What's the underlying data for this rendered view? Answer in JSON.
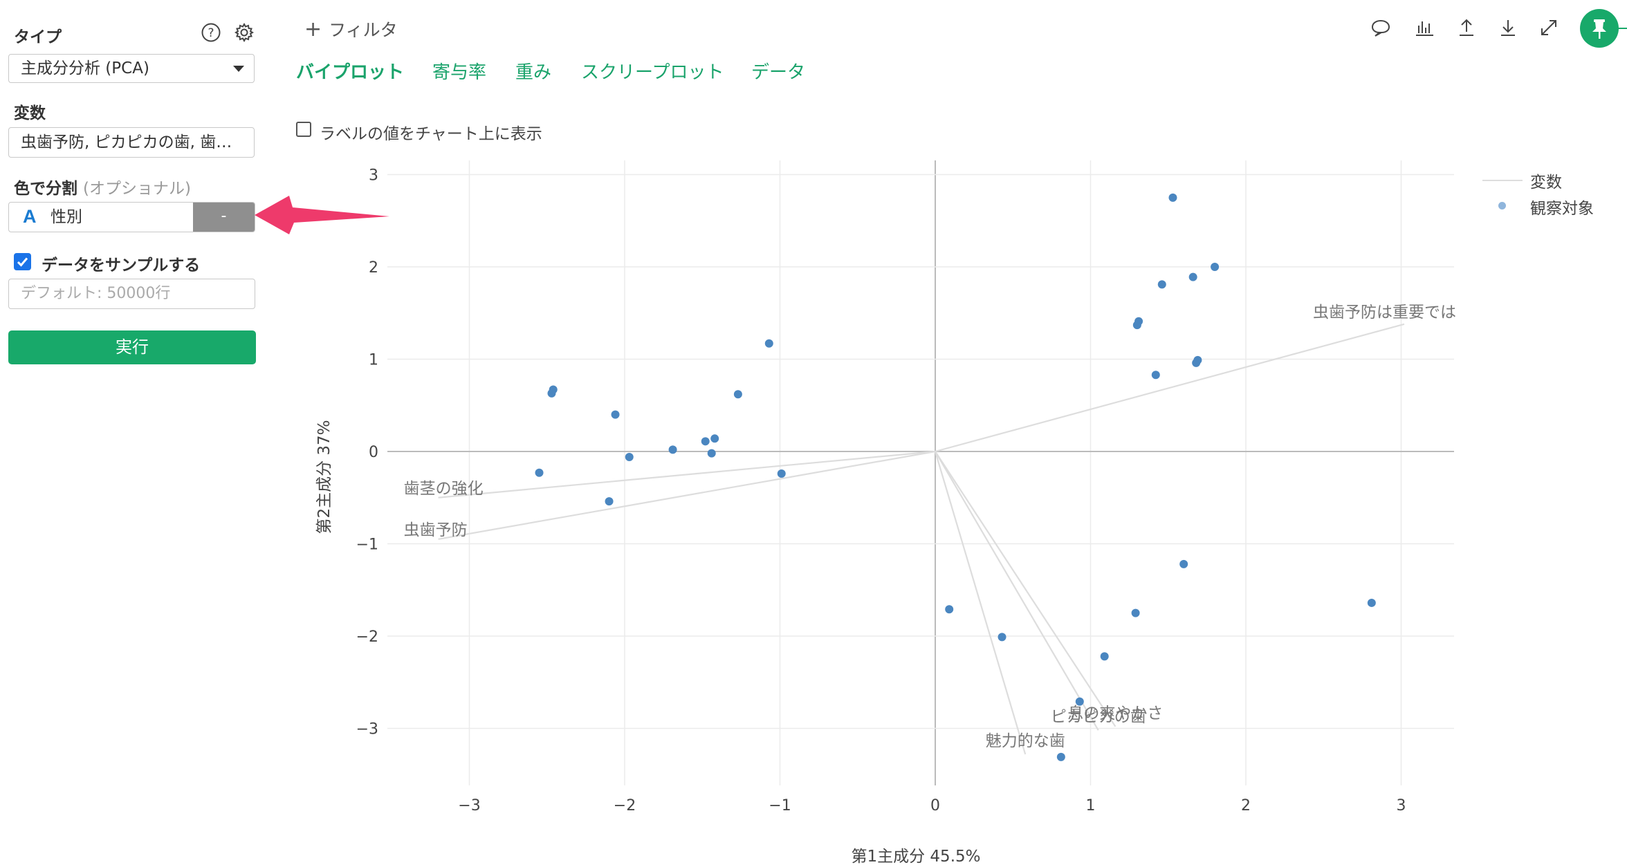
{
  "sidebar": {
    "type_label": "タイプ",
    "type_value": "主成分分析 (PCA)",
    "variables_label": "変数",
    "variables_value": "虫歯予防, ピカピカの歯, 歯…",
    "color_label": "色で分割",
    "color_optional": "(オプショナル)",
    "color_field_icon": "A",
    "color_field": "性別",
    "color_dash": "-",
    "sample_label": "データをサンプルする",
    "sample_checked": true,
    "sample_placeholder": "デフォルト: 50000行",
    "run_label": "実行"
  },
  "header": {
    "filter_label": "フィルタ",
    "tabs": [
      {
        "label": "バイプロット",
        "active": true
      },
      {
        "label": "寄与率",
        "active": false
      },
      {
        "label": "重み",
        "active": false
      },
      {
        "label": "スクリープロット",
        "active": false
      },
      {
        "label": "データ",
        "active": false
      }
    ],
    "show_labels_text": "ラベルの値をチャート上に表示",
    "toolbar_icons": [
      "comment-icon",
      "chart-icon",
      "upload-icon",
      "download-icon",
      "expand-icon",
      "pin-icon"
    ]
  },
  "colors": {
    "accent": "#18a96a",
    "point": "#4a86c0",
    "vector": "#dddddd",
    "annotation_arrow": "#ee3a6b"
  },
  "chart_data": {
    "type": "scatter",
    "xlabel": "第1主成分 45.5%",
    "ylabel": "第2主成分 37%",
    "xlim": [
      -3.3,
      3.35
    ],
    "ylim": [
      -3.65,
      3.15
    ],
    "xticks": [
      -3,
      -2,
      -1,
      0,
      1,
      2,
      3
    ],
    "yticks": [
      -3,
      -2,
      -1,
      0,
      1,
      2,
      3
    ],
    "tick_labels_x": [
      "−3",
      "−2",
      "−1",
      "0",
      "1",
      "2",
      "3"
    ],
    "tick_labels_y": [
      "−3",
      "−2",
      "−1",
      "0",
      "1",
      "2",
      "3"
    ],
    "grid": true,
    "legend_position": "top-right",
    "legend": [
      "変数",
      "観察対象"
    ],
    "series": [
      {
        "name": "観察対象",
        "points": [
          [
            1.53,
            2.75
          ],
          [
            1.8,
            2.0
          ],
          [
            1.66,
            1.89
          ],
          [
            1.46,
            1.81
          ],
          [
            1.31,
            1.41
          ],
          [
            1.3,
            1.37
          ],
          [
            1.69,
            0.99
          ],
          [
            1.68,
            0.96
          ],
          [
            1.42,
            0.83
          ],
          [
            -1.07,
            1.17
          ],
          [
            -1.27,
            0.62
          ],
          [
            -2.46,
            0.67
          ],
          [
            -2.47,
            0.63
          ],
          [
            -2.06,
            0.4
          ],
          [
            -1.42,
            0.14
          ],
          [
            -1.48,
            0.11
          ],
          [
            -1.69,
            0.02
          ],
          [
            -1.44,
            -0.02
          ],
          [
            -1.97,
            -0.06
          ],
          [
            -0.99,
            -0.24
          ],
          [
            -2.55,
            -0.23
          ],
          [
            -2.1,
            -0.54
          ],
          [
            1.6,
            -1.22
          ],
          [
            2.81,
            -1.64
          ],
          [
            1.29,
            -1.75
          ],
          [
            0.09,
            -1.71
          ],
          [
            0.43,
            -2.01
          ],
          [
            1.09,
            -2.22
          ],
          [
            0.93,
            -2.71
          ],
          [
            0.81,
            -3.31
          ]
        ]
      },
      {
        "name": "変数",
        "vectors": [
          {
            "label": "虫歯予防は重要では",
            "end": [
              3.02,
              1.38
            ]
          },
          {
            "label": "歯茎の強化",
            "end": [
              -3.2,
              -0.5
            ]
          },
          {
            "label": "虫歯予防",
            "end": [
              -3.2,
              -0.95
            ]
          },
          {
            "label": "ピカピカの歯",
            "end": [
              1.05,
              -3.02
            ]
          },
          {
            "label": "息の爽やかさ",
            "end": [
              1.16,
              -2.98
            ]
          },
          {
            "label": "魅力的な歯",
            "end": [
              0.58,
              -3.28
            ]
          }
        ]
      }
    ]
  }
}
